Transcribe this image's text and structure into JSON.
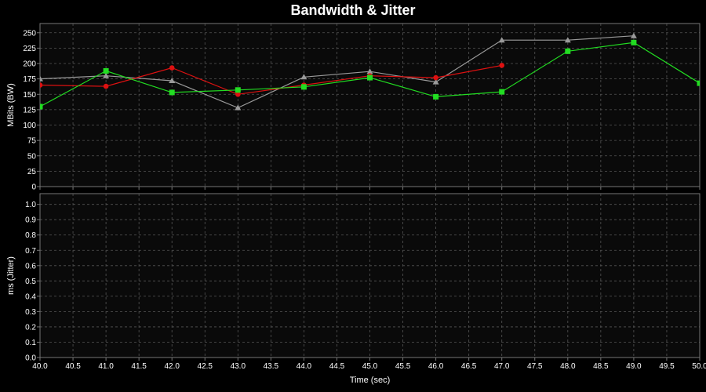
{
  "title": "Bandwidth & Jitter",
  "colors": {
    "background": "#000000",
    "plot_background": "#0a0a0a",
    "grid": "#555555",
    "frame": "#777777",
    "text": "#ffffff"
  },
  "chart_data": [
    {
      "id": "bandwidth",
      "type": "line",
      "title": "Bandwidth & Jitter",
      "ylabel": "MBits (BW)",
      "xlabel": "",
      "xlim": [
        40.0,
        50.0
      ],
      "ylim": [
        0,
        265
      ],
      "grid": true,
      "x_ticks": [
        "40.0",
        "40.5",
        "41.0",
        "41.5",
        "42.0",
        "42.5",
        "43.0",
        "43.5",
        "44.0",
        "44.5",
        "45.0",
        "45.5",
        "46.0",
        "46.5",
        "47.0",
        "47.5",
        "48.0",
        "48.5",
        "49.0",
        "49.5",
        "50.0"
      ],
      "y_ticks": [
        "0",
        "25",
        "50",
        "75",
        "100",
        "125",
        "150",
        "175",
        "200",
        "225",
        "250"
      ],
      "series": [
        {
          "color": "#9a9a9a",
          "marker": "triangle",
          "x": [
            40,
            41,
            42,
            43,
            44,
            45,
            46,
            47,
            48,
            49
          ],
          "y": [
            175,
            180,
            172,
            128,
            178,
            187,
            170,
            238,
            238,
            245
          ]
        },
        {
          "color": "#dd1111",
          "marker": "circle",
          "x": [
            40,
            41,
            42,
            43,
            44,
            45,
            46,
            47
          ],
          "y": [
            165,
            163,
            193,
            150,
            165,
            180,
            177,
            197
          ]
        },
        {
          "color": "#22dd22",
          "marker": "square",
          "x": [
            40,
            41,
            42,
            43,
            44,
            45,
            46,
            47,
            48,
            49,
            50
          ],
          "y": [
            130,
            188,
            153,
            157,
            162,
            177,
            146,
            154,
            220,
            234,
            168
          ]
        }
      ]
    },
    {
      "id": "jitter",
      "type": "line",
      "ylabel": "ms (Jitter)",
      "xlabel": "Time (sec)",
      "xlim": [
        40.0,
        50.0
      ],
      "ylim": [
        0,
        1.07
      ],
      "grid": true,
      "x_ticks": [
        "40.0",
        "40.5",
        "41.0",
        "41.5",
        "42.0",
        "42.5",
        "43.0",
        "43.5",
        "44.0",
        "44.5",
        "45.0",
        "45.5",
        "46.0",
        "46.5",
        "47.0",
        "47.5",
        "48.0",
        "48.5",
        "49.0",
        "49.5",
        "50.0"
      ],
      "y_ticks": [
        "0.0",
        "0.1",
        "0.2",
        "0.3",
        "0.4",
        "0.5",
        "0.6",
        "0.7",
        "0.8",
        "0.9",
        "1.0"
      ],
      "series": []
    }
  ]
}
